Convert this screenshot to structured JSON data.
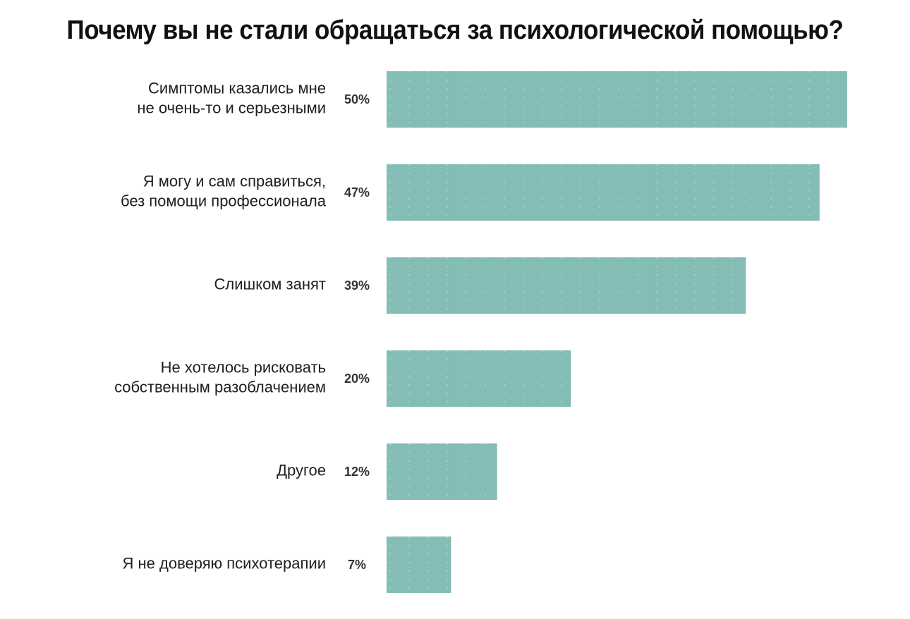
{
  "chart_data": {
    "type": "bar",
    "orientation": "horizontal",
    "title": "Почему вы не стали обращаться за психологической помощью?",
    "categories": [
      [
        "Симптомы казались мне",
        "не очень-то и серьезными"
      ],
      [
        "Я могу и сам справиться,",
        "без помощи профессионала"
      ],
      [
        "Слишком занят"
      ],
      [
        "Не хотелось рисковать",
        "собственным разоблачением"
      ],
      [
        "Другое"
      ],
      [
        "Я не доверяю психотерапии"
      ]
    ],
    "values": [
      50,
      47,
      39,
      20,
      12,
      7
    ],
    "value_labels": [
      "50%",
      "47%",
      "39%",
      "20%",
      "12%",
      "7%"
    ],
    "unit": "%",
    "xlim": [
      0,
      50
    ],
    "grid": false,
    "legend": "none",
    "colors": {
      "bar": "#83bdb6",
      "bar_dot": "#b9dcd7",
      "title": "#111111",
      "label": "#1e1e1e",
      "value": "#333333"
    }
  }
}
